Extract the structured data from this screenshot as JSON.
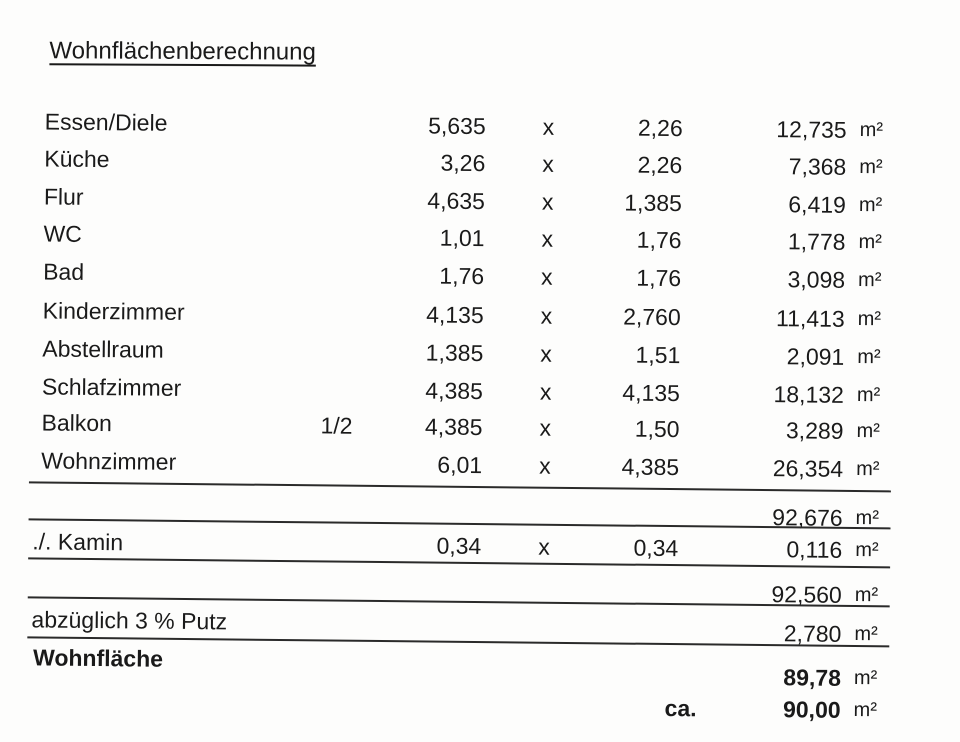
{
  "title": "Wohnflächenberechnung",
  "unit": "m²",
  "rooms": [
    {
      "name": "Essen/Diele",
      "factor": "",
      "a": "5,635",
      "op": "x",
      "b": "2,26",
      "area": "12,735"
    },
    {
      "name": "Küche",
      "factor": "",
      "a": "3,26",
      "op": "x",
      "b": "2,26",
      "area": "7,368"
    },
    {
      "name": "Flur",
      "factor": "",
      "a": "4,635",
      "op": "x",
      "b": "1,385",
      "area": "6,419"
    },
    {
      "name": "WC",
      "factor": "",
      "a": "1,01",
      "op": "x",
      "b": "1,76",
      "area": "1,778"
    },
    {
      "name": "Bad",
      "factor": "",
      "a": "1,76",
      "op": "x",
      "b": "1,76",
      "area": "3,098"
    },
    {
      "name": "Kinderzimmer",
      "factor": "",
      "a": "4,135",
      "op": "x",
      "b": "2,760",
      "area": "11,413"
    },
    {
      "name": "Abstellraum",
      "factor": "",
      "a": "1,385",
      "op": "x",
      "b": "1,51",
      "area": "2,091"
    },
    {
      "name": "Schlafzimmer",
      "factor": "",
      "a": "4,385",
      "op": "x",
      "b": "4,135",
      "area": "18,132"
    },
    {
      "name": "Balkon",
      "factor": "1/2",
      "a": "4,385",
      "op": "x",
      "b": "1,50",
      "area": "3,289"
    },
    {
      "name": "Wohnzimmer",
      "factor": "",
      "a": "6,01",
      "op": "x",
      "b": "4,385",
      "area": "26,354"
    }
  ],
  "subtotal1": "92,676",
  "kamin": {
    "name": "./. Kamin",
    "a": "0,34",
    "op": "x",
    "b": "0,34",
    "area": "0,116"
  },
  "subtotal2": "92,560",
  "putz": {
    "name": "abzüglich 3 % Putz",
    "area": "2,780"
  },
  "wohnflaeche": {
    "name": "Wohnfläche",
    "area": "89,78"
  },
  "rounded": {
    "prefix": "ca.",
    "area": "90,00"
  }
}
